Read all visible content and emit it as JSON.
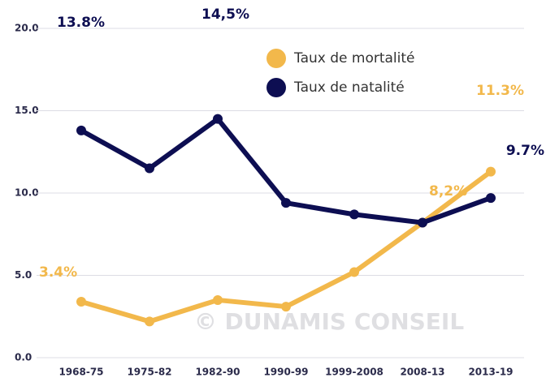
{
  "chart_data": {
    "type": "line",
    "categories": [
      "1968-75",
      "1975-82",
      "1982-90",
      "1990-99",
      "1999-2008",
      "2008-13",
      "2013-19"
    ],
    "series": [
      {
        "name": "Taux de mortalité",
        "color": "#f2b84b",
        "values": [
          3.4,
          2.2,
          3.5,
          3.1,
          5.2,
          8.2,
          11.3
        ],
        "value_labels": [
          "3.4%",
          null,
          null,
          null,
          null,
          "8,2%",
          "11.3%"
        ]
      },
      {
        "name": "Taux de natalité",
        "color": "#0d0e52",
        "values": [
          13.8,
          11.5,
          14.5,
          9.4,
          8.7,
          8.2,
          9.7
        ],
        "value_labels": [
          "13.8%",
          null,
          "14,5%",
          null,
          null,
          null,
          "9.7%"
        ]
      }
    ],
    "ylim": [
      0,
      20
    ],
    "yticks": [
      {
        "value": 0,
        "label": "0.0"
      },
      {
        "value": 5,
        "label": "5.0"
      },
      {
        "value": 10,
        "label": "10.0"
      },
      {
        "value": 15,
        "label": "15.0"
      },
      {
        "value": 20,
        "label": "20.0"
      }
    ],
    "grid": true,
    "watermark": "© DUNAMIS CONSEIL"
  }
}
